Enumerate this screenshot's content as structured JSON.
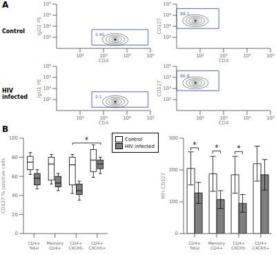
{
  "chart_data": [
    {
      "type": "contour",
      "x_label": "CD4",
      "y_label": "IgG1 PE",
      "xlim": [
        0,
        4
      ],
      "ylim": [
        0,
        4
      ],
      "xticks": [
        {
          "value": 1,
          "label": "10²"
        },
        {
          "value": 2,
          "label": "10³"
        },
        {
          "value": 3,
          "label": "10⁴"
        },
        {
          "value": 4,
          "label": "10⁵"
        }
      ],
      "yticks": [
        {
          "value": 1,
          "label": "10²"
        },
        {
          "value": 2,
          "label": "10³"
        },
        {
          "value": 3,
          "label": "10⁴"
        },
        {
          "value": 4,
          "label": "10⁵"
        }
      ],
      "x": [
        2.5
      ],
      "y": [
        0.8
      ],
      "gate": {
        "label": "5.40",
        "x": [
          1.5,
          3.9
        ],
        "y": [
          0.3,
          1.7
        ]
      },
      "color": "#5566bb",
      "annotations": [
        {
          "kind": "panel",
          "text": "A"
        },
        {
          "kind": "row",
          "text": "Control"
        }
      ]
    },
    {
      "type": "contour",
      "x_label": "CD4",
      "y_label": "CD127",
      "xlim": [
        0,
        4
      ],
      "ylim": [
        0,
        4
      ],
      "xticks": [
        {
          "value": 1,
          "label": "10²"
        },
        {
          "value": 2,
          "label": "10³"
        },
        {
          "value": 3,
          "label": "10⁴"
        },
        {
          "value": 4,
          "label": "10⁵"
        }
      ],
      "yticks": [
        {
          "value": 1,
          "label": "10²"
        },
        {
          "value": 2,
          "label": "10³"
        },
        {
          "value": 3,
          "label": "10⁴"
        },
        {
          "value": 4,
          "label": "10⁵"
        }
      ],
      "x": [
        0.8
      ],
      "y": [
        2.5
      ],
      "gate": {
        "label": "88.1",
        "x": [
          0.0,
          1.8
        ],
        "y": [
          1.8,
          3.6
        ]
      },
      "color": "#5566bb"
    },
    {
      "type": "contour",
      "x_label": "CD4",
      "y_label": "IgG1 PE",
      "xlim": [
        0,
        4
      ],
      "ylim": [
        0,
        4
      ],
      "xticks": [
        {
          "value": 1,
          "label": "10²"
        },
        {
          "value": 2,
          "label": "10³"
        },
        {
          "value": 3,
          "label": "10⁴"
        },
        {
          "value": 4,
          "label": "10⁵"
        }
      ],
      "yticks": [
        {
          "value": 1,
          "label": "10²"
        },
        {
          "value": 2,
          "label": "10³"
        },
        {
          "value": 3,
          "label": "10⁴"
        },
        {
          "value": 4,
          "label": "10⁵"
        }
      ],
      "x": [
        2.5
      ],
      "y": [
        0.8
      ],
      "gate": {
        "label": "2.1",
        "x": [
          1.5,
          3.9
        ],
        "y": [
          0.3,
          1.7
        ]
      },
      "color": "#5566bb",
      "annotations": [
        {
          "kind": "row",
          "text": "HIV\ninfected"
        }
      ]
    },
    {
      "type": "contour",
      "x_label": "CD4",
      "y_label": "CD127",
      "xlim": [
        0,
        4
      ],
      "ylim": [
        0,
        4
      ],
      "xticks": [
        {
          "value": 1,
          "label": "10²"
        },
        {
          "value": 2,
          "label": "10³"
        },
        {
          "value": 3,
          "label": "10⁴"
        },
        {
          "value": 4,
          "label": "10⁵"
        }
      ],
      "yticks": [
        {
          "value": 1,
          "label": "10²"
        },
        {
          "value": 2,
          "label": "10³"
        },
        {
          "value": 3,
          "label": "10⁴"
        },
        {
          "value": 4,
          "label": "10⁵"
        }
      ],
      "x": [
        0.8
      ],
      "y": [
        2.5
      ],
      "gate": {
        "label": "86.8",
        "x": [
          0.0,
          1.8
        ],
        "y": [
          1.8,
          3.6
        ]
      },
      "color": "#5566bb"
    },
    {
      "type": "box",
      "y_label": "CD127 % positive cells",
      "categories": [
        "CD4+\nTotal",
        "Memory\nCD4+",
        "CD4+\nCXCR5-",
        "CD4+\nCXCR5+"
      ],
      "ylim": [
        0,
        100
      ],
      "yticks": [
        0,
        20,
        40,
        60,
        80,
        100
      ],
      "legend": "top",
      "series": [
        {
          "name": "Control",
          "color": "#ffffff",
          "values": [
            {
              "median": 75,
              "q1": 67,
              "q3": 81,
              "whislo": 62,
              "whishi": 85
            },
            {
              "median": 73,
              "q1": 56,
              "q3": 80,
              "whislo": 52,
              "whishi": 83
            },
            {
              "median": 72,
              "q1": 51,
              "q3": 80,
              "whislo": 42,
              "whishi": 83
            },
            {
              "median": 77,
              "q1": 65,
              "q3": 88,
              "whislo": 59,
              "whishi": 93
            }
          ]
        },
        {
          "name": "HIV infected",
          "color": "#7f7f7f",
          "values": [
            {
              "median": 58,
              "q1": 51,
              "q3": 63,
              "whislo": 47,
              "whishi": 67
            },
            {
              "median": 53,
              "q1": 49,
              "q3": 60,
              "whislo": 45,
              "whishi": 63
            },
            {
              "median": 45,
              "q1": 41,
              "q3": 52,
              "whislo": 35,
              "whishi": 55
            },
            {
              "median": 73,
              "q1": 68,
              "q3": 77,
              "whislo": 63,
              "whishi": 80
            }
          ]
        }
      ],
      "annotations": [
        {
          "kind": "panel",
          "text": "B"
        },
        {
          "kind": "significance",
          "text": "*",
          "y": 95,
          "drop": 2,
          "from": [
            "CD4+\nCXCR5-",
            "Control"
          ],
          "to": [
            "CD4+\nCXCR5+",
            "HIV infected"
          ]
        }
      ]
    },
    {
      "type": "bar",
      "y_label": "MFI CD127",
      "categories": [
        "CD4+\nTotal",
        "Memory\nCD4+",
        "CD4+\nCXCR5-",
        "CD4+\nCXCR5+"
      ],
      "ylim": [
        0,
        300
      ],
      "yticks": [
        0,
        100,
        200,
        300
      ],
      "series": [
        {
          "name": "Control",
          "color": "#ffffff",
          "values": [
            205,
            188,
            185,
            220
          ],
          "errors": [
            52,
            55,
            58,
            55
          ]
        },
        {
          "name": "HIV infected",
          "color": "#7f7f7f",
          "values": [
            128,
            107,
            95,
            185
          ],
          "errors": [
            33,
            28,
            28,
            48
          ]
        }
      ],
      "annotations": [
        {
          "kind": "significance",
          "text": "*",
          "y": 270,
          "drop": 8,
          "from": [
            "CD4+\nTotal",
            "Control"
          ],
          "to": [
            "CD4+\nTotal",
            "HIV infected"
          ]
        },
        {
          "kind": "significance",
          "text": "*",
          "y": 260,
          "drop": 8,
          "from": [
            "Memory\nCD4+",
            "Control"
          ],
          "to": [
            "Memory\nCD4+",
            "HIV infected"
          ]
        },
        {
          "kind": "significance",
          "text": "*",
          "y": 258,
          "drop": 8,
          "from": [
            "CD4+\nCXCR5-",
            "Control"
          ],
          "to": [
            "CD4+\nCXCR5-",
            "HIV infected"
          ]
        }
      ]
    }
  ]
}
